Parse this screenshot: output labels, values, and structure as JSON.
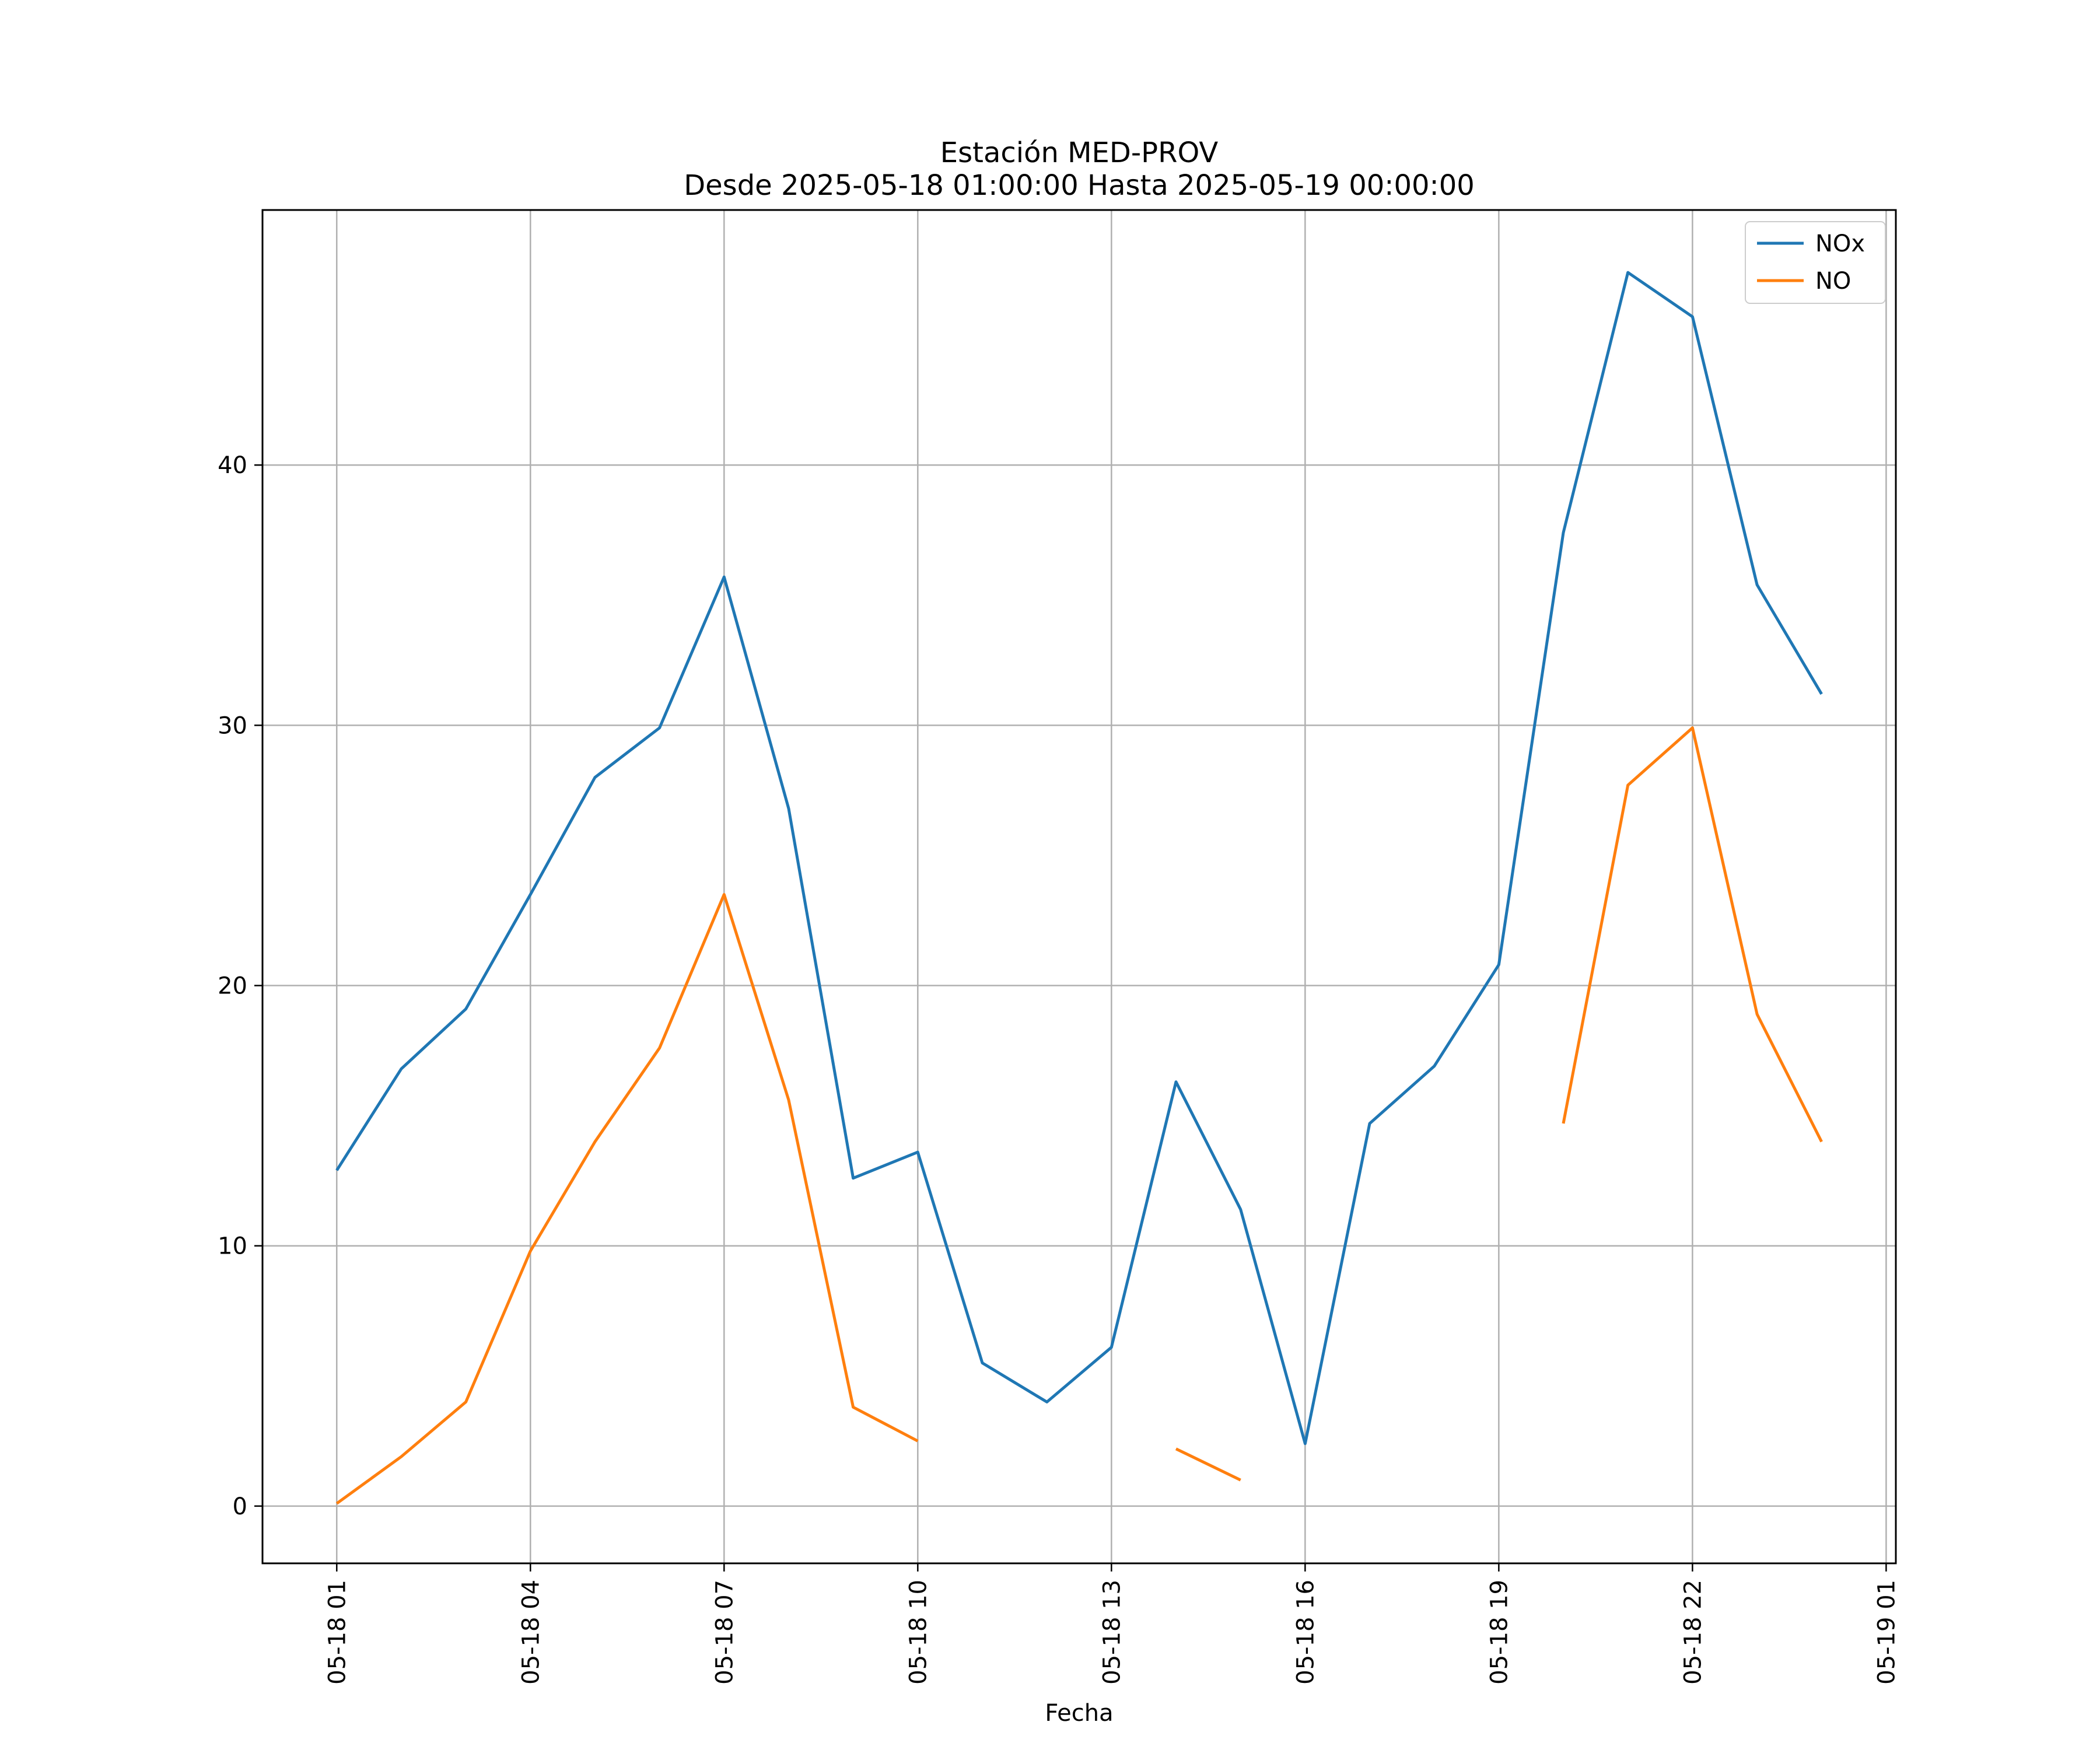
{
  "chart_data": {
    "type": "line",
    "title": "Estación MED-PROV",
    "subtitle": "Desde 2025-05-18 01:00:00 Hasta 2025-05-19 00:00:00",
    "xlabel": "Fecha",
    "ylabel": "",
    "x": [
      "2025-05-18 01:00",
      "2025-05-18 02:00",
      "2025-05-18 03:00",
      "2025-05-18 04:00",
      "2025-05-18 05:00",
      "2025-05-18 06:00",
      "2025-05-18 07:00",
      "2025-05-18 08:00",
      "2025-05-18 09:00",
      "2025-05-18 10:00",
      "2025-05-18 11:00",
      "2025-05-18 12:00",
      "2025-05-18 13:00",
      "2025-05-18 14:00",
      "2025-05-18 15:00",
      "2025-05-18 16:00",
      "2025-05-18 17:00",
      "2025-05-18 18:00",
      "2025-05-18 19:00",
      "2025-05-18 20:00",
      "2025-05-18 21:00",
      "2025-05-18 22:00",
      "2025-05-18 23:00",
      "2025-05-19 00:00"
    ],
    "series": [
      {
        "name": "NOx",
        "color": "#1f77b4",
        "values": [
          12.9,
          16.8,
          19.1,
          23.5,
          28.0,
          29.9,
          35.7,
          26.8,
          12.6,
          13.6,
          5.5,
          4.0,
          6.1,
          16.3,
          11.4,
          2.4,
          14.7,
          16.9,
          20.8,
          37.4,
          47.4,
          45.7,
          35.4,
          31.2
        ]
      },
      {
        "name": "NO",
        "color": "#ff7f0e",
        "values": [
          0.1,
          1.9,
          4.0,
          9.8,
          14.0,
          17.6,
          23.5,
          15.6,
          3.8,
          2.5,
          null,
          null,
          null,
          2.2,
          1.0,
          null,
          null,
          null,
          null,
          14.7,
          27.7,
          29.9,
          18.9,
          14.0
        ]
      }
    ],
    "x_ticks": [
      "05-18 01",
      "05-18 04",
      "05-18 07",
      "05-18 10",
      "05-18 13",
      "05-18 16",
      "05-18 19",
      "05-18 22",
      "05-19 01"
    ],
    "xlim": [
      "2025-05-17 23:51",
      "2025-05-19 01:09"
    ],
    "y_ticks": [
      0,
      10,
      20,
      30,
      40
    ],
    "ylim": [
      -2.2,
      49.8
    ],
    "grid": true,
    "legend_position": "top-right"
  }
}
